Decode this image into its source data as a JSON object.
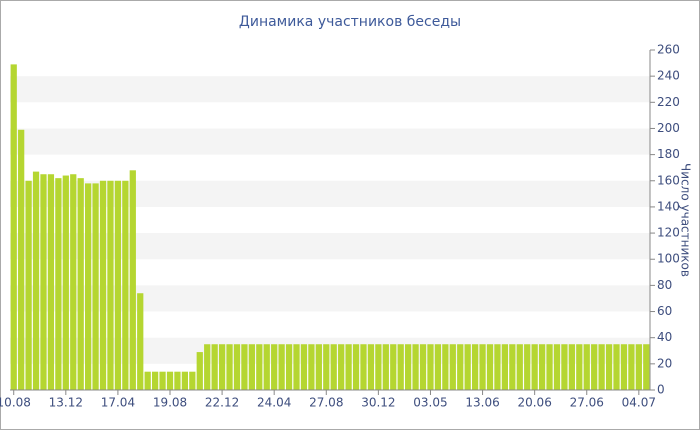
{
  "chart_data": {
    "type": "bar",
    "title": "Динамика участников беседы",
    "y_label": "Число участников",
    "color": "#b5d631",
    "categories": [
      "10.08",
      null,
      null,
      null,
      null,
      null,
      null,
      "13.12",
      null,
      null,
      null,
      null,
      null,
      null,
      "17.04",
      null,
      null,
      null,
      null,
      null,
      null,
      "19.08",
      null,
      null,
      null,
      null,
      null,
      null,
      "22.12",
      null,
      null,
      null,
      null,
      null,
      null,
      "24.04",
      null,
      null,
      null,
      null,
      null,
      null,
      "27.08",
      null,
      null,
      null,
      null,
      null,
      null,
      "30.12",
      null,
      null,
      null,
      null,
      null,
      null,
      "03.05",
      null,
      null,
      null,
      null,
      null,
      null,
      "13.06",
      null,
      null,
      null,
      null,
      null,
      null,
      "20.06",
      null,
      null,
      null,
      null,
      null,
      null,
      "27.06",
      null,
      null,
      null,
      null,
      null,
      null,
      "04.07",
      null
    ],
    "values": [
      249,
      199,
      160,
      167,
      165,
      165,
      162,
      164,
      165,
      162,
      158,
      158,
      160,
      160,
      160,
      160,
      168,
      74,
      14,
      14,
      14,
      14,
      14,
      14,
      14,
      29,
      35,
      35,
      35,
      35,
      35,
      35,
      35,
      35,
      35,
      35,
      35,
      35,
      35,
      35,
      35,
      35,
      35,
      35,
      35,
      35,
      35,
      35,
      35,
      35,
      35,
      35,
      35,
      35,
      35,
      35,
      35,
      35,
      35,
      35,
      35,
      35,
      35,
      35,
      35,
      35,
      35,
      35,
      35,
      35,
      35,
      35,
      35,
      35,
      35,
      35,
      35,
      35,
      35,
      35,
      35,
      35,
      35,
      35,
      35,
      35
    ],
    "ylim": [
      0,
      260
    ],
    "yticks": [
      0,
      20,
      40,
      60,
      80,
      100,
      120,
      140,
      160,
      180,
      200,
      220,
      240,
      260
    ],
    "grid": true
  }
}
